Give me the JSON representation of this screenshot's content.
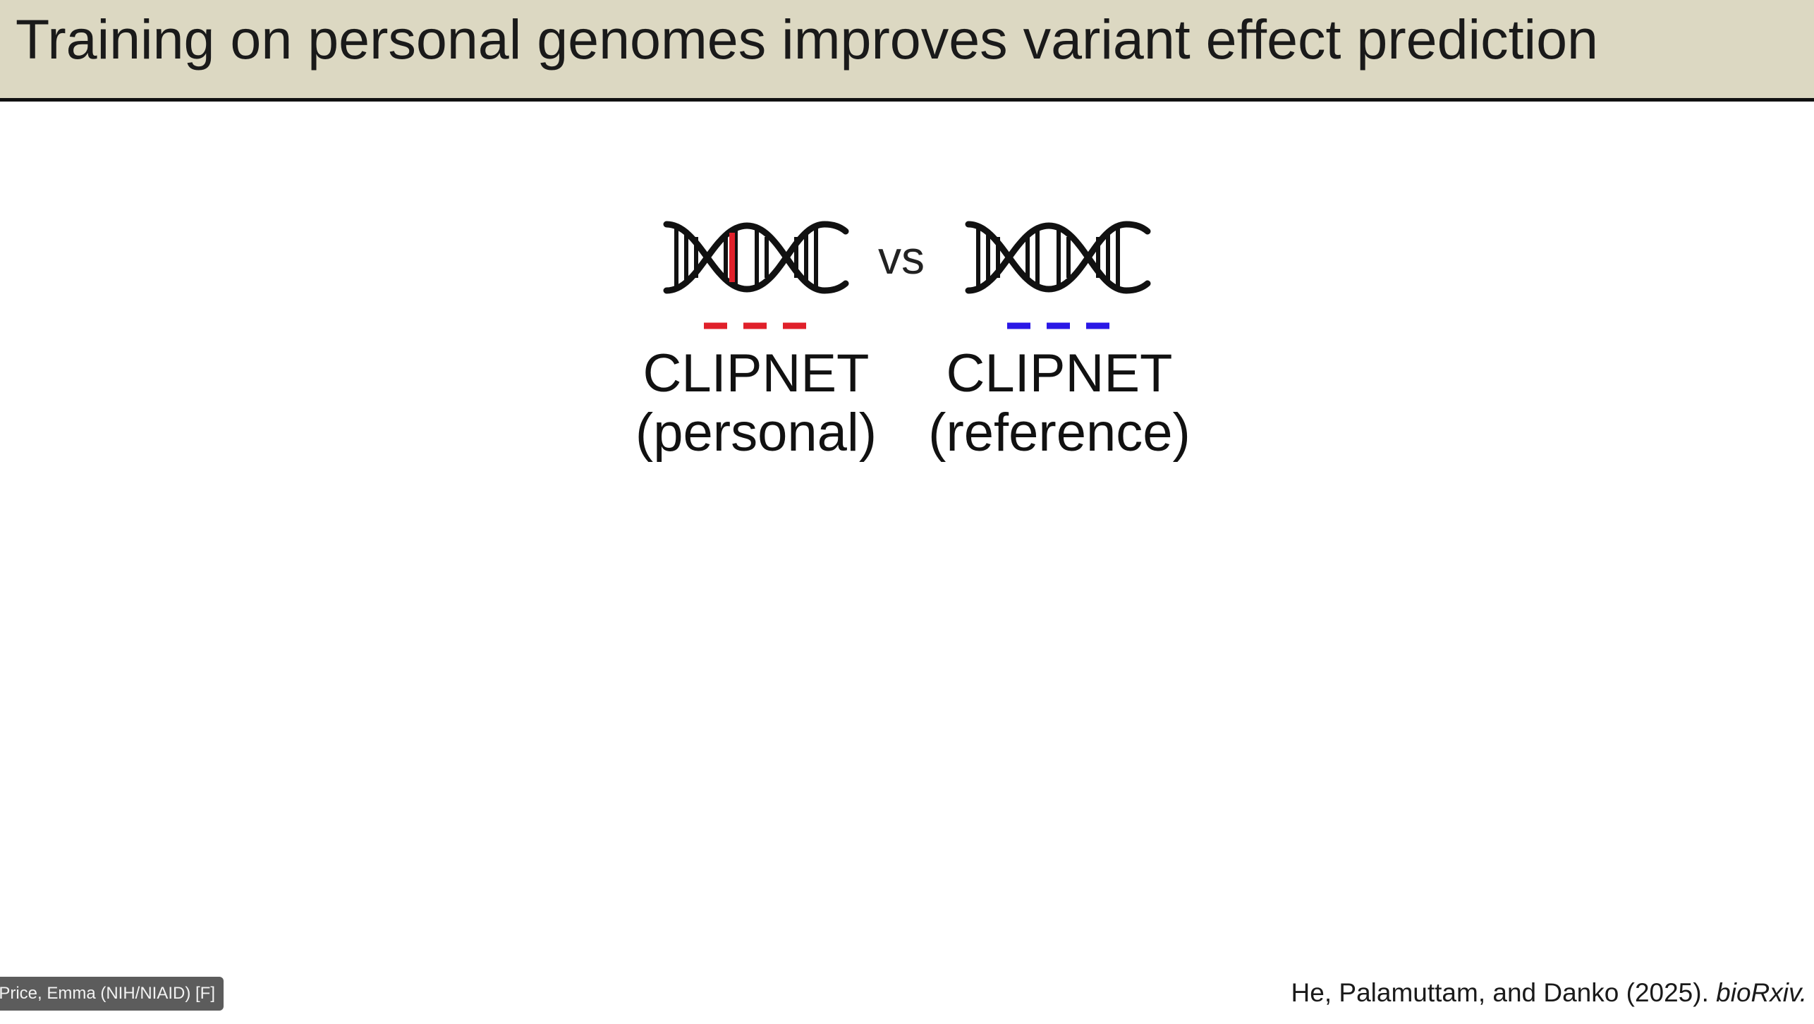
{
  "slide": {
    "title": "Training on personal genomes improves variant effect prediction",
    "comparison_word": "vs",
    "models": [
      {
        "name": "CLIPNET",
        "variant": "(personal)",
        "line_color": "#e0202a",
        "highlight_color": "#e0202a",
        "icon": "dna-helix-icon"
      },
      {
        "name": "CLIPNET",
        "variant": "(reference)",
        "line_color": "#2b18e6",
        "icon": "dna-helix-icon"
      }
    ],
    "citation_authors": "He, Palamuttam, and Danko (2025). ",
    "citation_journal": "bioRxiv."
  },
  "meeting": {
    "participant_name": "Price, Emma (NIH/NIAID) [F]"
  },
  "colors": {
    "title_bar": "#dcd8c2",
    "title_rule": "#111111",
    "dna_stroke": "#111111"
  }
}
